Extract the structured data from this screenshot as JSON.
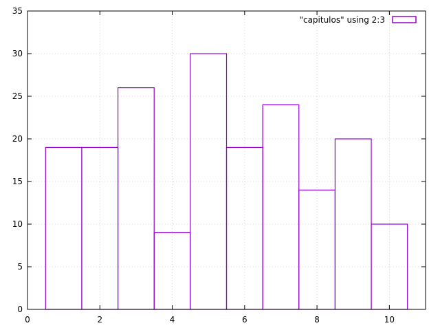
{
  "chart_data": {
    "type": "bar",
    "title": "",
    "xlabel": "",
    "ylabel": "",
    "x": [
      1,
      2,
      3,
      4,
      5,
      6,
      7,
      8,
      9,
      10
    ],
    "series": [
      {
        "name": "\"capitulos\" using 2:3",
        "values": [
          19,
          19,
          26,
          9,
          30,
          19,
          24,
          14,
          20,
          10
        ],
        "color": "#9400d3"
      }
    ],
    "bar_width": 1,
    "xlim": [
      0,
      11
    ],
    "ylim": [
      0,
      35
    ],
    "xticks": [
      0,
      2,
      4,
      6,
      8,
      10
    ],
    "yticks": [
      0,
      5,
      10,
      15,
      20,
      25,
      30,
      35
    ],
    "grid": true,
    "legend_position": "top-right"
  }
}
